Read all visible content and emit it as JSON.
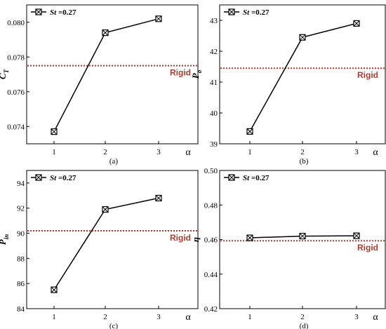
{
  "chart_data": [
    {
      "type": "line",
      "subcaption": "(a)",
      "ylabel": "C_T",
      "ylabel_main": "C",
      "ylabel_sub": "T",
      "xlabel": "α",
      "x": [
        1,
        2,
        3
      ],
      "xticks": [
        "1",
        "2",
        "3"
      ],
      "ylim": [
        0.073,
        0.081
      ],
      "yticks": [
        "0.074",
        "0.076",
        "0.078",
        "0.080"
      ],
      "series": [
        {
          "name": "St =0.27",
          "values": [
            0.0737,
            0.0794,
            0.0802
          ]
        }
      ],
      "reference": {
        "label": "Rigid",
        "value": 0.0775,
        "color": "#b03a2e",
        "label_position": "below-right"
      },
      "legend": {
        "position": "top-left",
        "prefix": "St",
        "suffix": " =0.27"
      }
    },
    {
      "type": "line",
      "subcaption": "(b)",
      "ylabel": "P_o",
      "ylabel_main": "P",
      "ylabel_sub": "o",
      "xlabel": "α",
      "x": [
        1,
        2,
        3
      ],
      "xticks": [
        "1",
        "2",
        "3"
      ],
      "ylim": [
        39,
        43.5
      ],
      "yticks": [
        "39",
        "40",
        "41",
        "42",
        "43"
      ],
      "series": [
        {
          "name": "St =0.27",
          "values": [
            39.4,
            42.45,
            42.9
          ]
        }
      ],
      "reference": {
        "label": "Rigid",
        "value": 41.45,
        "color": "#b03a2e",
        "label_position": "below-right"
      },
      "legend": {
        "position": "top-left",
        "prefix": "St",
        "suffix": " =0.27"
      }
    },
    {
      "type": "line",
      "subcaption": "(c)",
      "ylabel": "P_in",
      "ylabel_main": "P",
      "ylabel_sub": "in",
      "xlabel": "α",
      "x": [
        1,
        2,
        3
      ],
      "xticks": [
        "1",
        "2",
        "3"
      ],
      "ylim": [
        84,
        95
      ],
      "yticks": [
        "84",
        "86",
        "88",
        "90",
        "92",
        "94"
      ],
      "series": [
        {
          "name": "St =0.27",
          "values": [
            85.5,
            91.9,
            92.8
          ]
        }
      ],
      "reference": {
        "label": "Rigid",
        "value": 90.2,
        "color": "#b03a2e",
        "label_position": "below-right"
      },
      "legend": {
        "position": "top-left",
        "prefix": "St",
        "suffix": " =0.27"
      }
    },
    {
      "type": "line",
      "subcaption": "(d)",
      "ylabel": "η",
      "ylabel_main": "η",
      "ylabel_sub": "",
      "xlabel": "α",
      "x": [
        1,
        2,
        3
      ],
      "xticks": [
        "1",
        "2",
        "3"
      ],
      "ylim": [
        0.42,
        0.5
      ],
      "yticks": [
        "0.42",
        "0.44",
        "0.46",
        "0.48",
        "0.50"
      ],
      "series": [
        {
          "name": "St =0.27",
          "values": [
            0.461,
            0.462,
            0.4622
          ]
        }
      ],
      "reference": {
        "label": "Rigid",
        "value": 0.4593,
        "color": "#b03a2e",
        "label_position": "below-right"
      },
      "legend": {
        "position": "top-left",
        "prefix": "St",
        "suffix": " =0.27"
      }
    }
  ]
}
